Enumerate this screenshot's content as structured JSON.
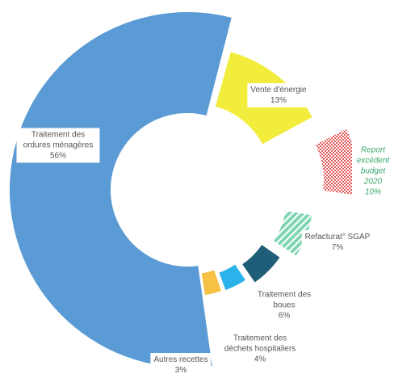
{
  "chart_data": {
    "type": "donut",
    "categories": [
      "Vente d'énergie",
      "Report excédent budget 2020",
      "Refacturat° SGAP",
      "Traitement des boues",
      "Traitement des déchets hospitaliers",
      "Autres recettes",
      "Traitement des ordures ménagères"
    ],
    "values": [
      13,
      10,
      7,
      6,
      4,
      3,
      56
    ],
    "value_labels": [
      "13%",
      "10%",
      "7%",
      "6%",
      "4%",
      "3%",
      "56%"
    ],
    "colors": [
      "#f2ec3c",
      "#e85a5a",
      "#7fd6b2",
      "#1f5e78",
      "#2bb2ea",
      "#f6c144",
      "#5b9bd5"
    ]
  }
}
